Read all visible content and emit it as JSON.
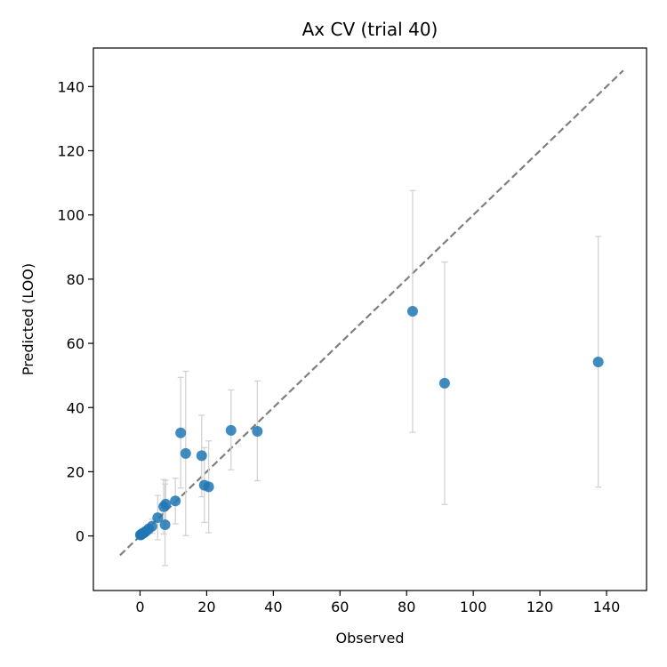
{
  "chart_data": {
    "type": "scatter",
    "title": "Ax CV (trial 40)",
    "xlabel": "Observed",
    "ylabel": "Predicted (LOO)",
    "xlim": [
      -14,
      152
    ],
    "ylim": [
      -17,
      152
    ],
    "xticks": [
      0,
      20,
      40,
      60,
      80,
      100,
      120,
      140
    ],
    "yticks": [
      0,
      20,
      40,
      60,
      80,
      100,
      120,
      140
    ],
    "grid": false,
    "reference_line": {
      "style": "dashed",
      "color": "#7f7f7f",
      "from": [
        -6,
        -6
      ],
      "to": [
        145,
        145
      ]
    },
    "point_color": "#1f77b4",
    "errorbar_color": "#d3d3d3",
    "points": [
      {
        "x": 137.5,
        "y": 54.2,
        "lo": 15.2,
        "hi": 93.3
      },
      {
        "x": 91.4,
        "y": 47.6,
        "lo": 9.8,
        "hi": 85.3
      },
      {
        "x": 81.8,
        "y": 70.0,
        "lo": 32.3,
        "hi": 107.6
      },
      {
        "x": 35.2,
        "y": 32.6,
        "lo": 17.2,
        "hi": 48.3
      },
      {
        "x": 27.3,
        "y": 32.9,
        "lo": 20.6,
        "hi": 45.5
      },
      {
        "x": 20.6,
        "y": 15.3,
        "lo": 1.0,
        "hi": 29.6
      },
      {
        "x": 19.3,
        "y": 15.8,
        "lo": 4.2,
        "hi": 27.5
      },
      {
        "x": 18.5,
        "y": 25.0,
        "lo": 12.2,
        "hi": 37.6
      },
      {
        "x": 13.7,
        "y": 25.7,
        "lo": 0.1,
        "hi": 51.3
      },
      {
        "x": 12.2,
        "y": 32.1,
        "lo": 14.9,
        "hi": 49.4
      },
      {
        "x": 10.6,
        "y": 10.9,
        "lo": 3.8,
        "hi": 18.0
      },
      {
        "x": 7.7,
        "y": 9.9,
        "lo": 2.5,
        "hi": 17.3
      },
      {
        "x": 7.1,
        "y": 9.1,
        "lo": 0.6,
        "hi": 17.6
      },
      {
        "x": 7.5,
        "y": 3.5,
        "lo": -9.2,
        "hi": 16.2
      },
      {
        "x": 5.3,
        "y": 5.7,
        "lo": -1.2,
        "hi": 12.6
      },
      {
        "x": 3.6,
        "y": 3.0,
        "lo": 0.8,
        "hi": 5.2
      },
      {
        "x": 2.6,
        "y": 2.2,
        "lo": 0.8,
        "hi": 3.6
      },
      {
        "x": 1.8,
        "y": 1.5,
        "lo": 0.5,
        "hi": 2.5
      },
      {
        "x": 1.2,
        "y": 1.0,
        "lo": 0.3,
        "hi": 1.7
      },
      {
        "x": 0.8,
        "y": 0.8,
        "lo": 0.2,
        "hi": 1.4
      },
      {
        "x": 0.5,
        "y": 0.6,
        "lo": 0.1,
        "hi": 1.1
      },
      {
        "x": 0.3,
        "y": 0.4,
        "lo": 0.0,
        "hi": 0.8
      },
      {
        "x": 0.1,
        "y": 0.3,
        "lo": -0.1,
        "hi": 0.7
      }
    ]
  }
}
